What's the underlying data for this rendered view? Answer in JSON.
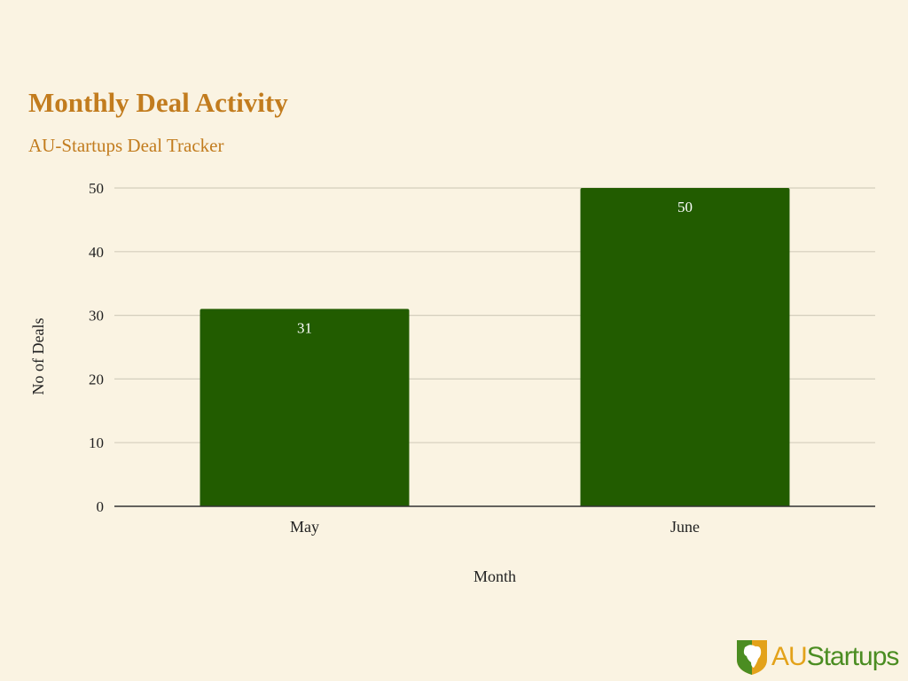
{
  "colors": {
    "background": "#faf3e2",
    "title": "#c27c1e",
    "bar": "#225c00",
    "bar_label": "#ffffff",
    "gridline": "#d4cebd",
    "axis_line": "#333333",
    "text": "#222222",
    "logo_gold": "#e3a21a",
    "logo_green": "#4b8d22"
  },
  "logo": {
    "prefix": "AU",
    "suffix": "Startups",
    "icon": "africa-shield-icon"
  },
  "chart_data": {
    "type": "bar",
    "title": "Monthly Deal Activity",
    "subtitle": "AU-Startups Deal Tracker",
    "xlabel": "Month",
    "ylabel": "No of Deals",
    "categories": [
      "May",
      "June"
    ],
    "values": [
      31,
      50
    ],
    "data_labels": [
      "31",
      "50"
    ],
    "ylim": [
      0,
      50
    ],
    "yticks": [
      0,
      10,
      20,
      30,
      40,
      50
    ],
    "grid": true,
    "legend": "none"
  }
}
